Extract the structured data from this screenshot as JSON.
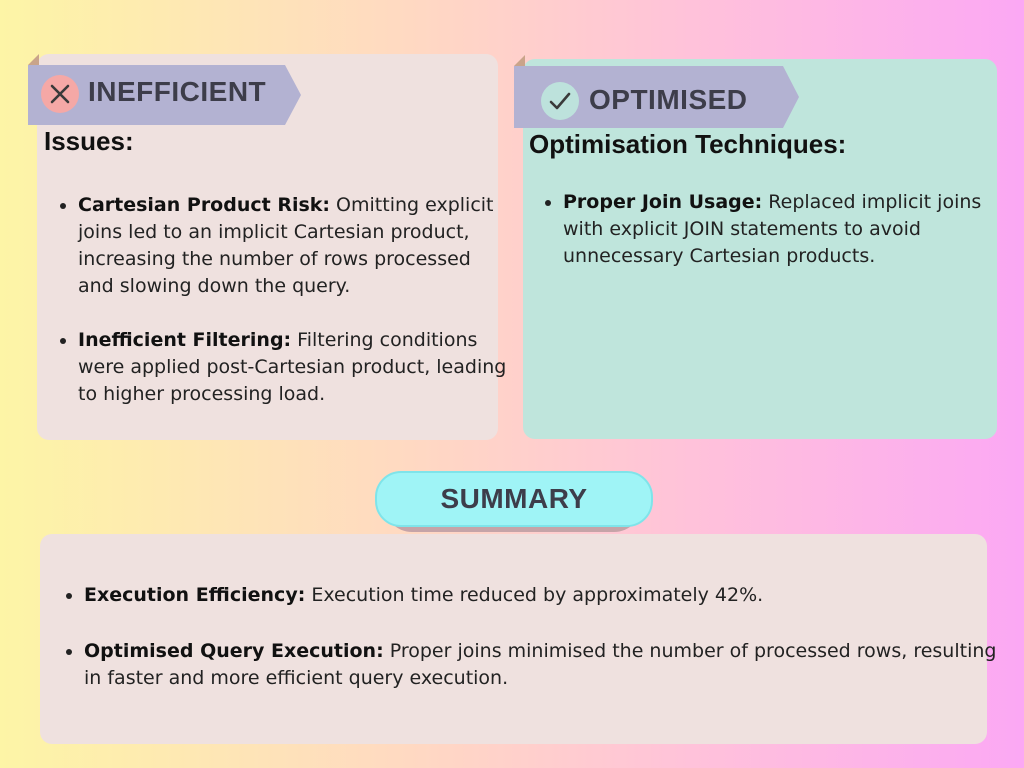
{
  "inefficient": {
    "ribbon_title": "INEFFICIENT",
    "icon": "close-icon",
    "heading": "Issues:",
    "items": [
      {
        "term": "Cartesian Product Risk:",
        "text": " Omitting explicit joins led to an implicit Cartesian product, increasing the number of rows processed and slowing down the query."
      },
      {
        "term": "Inefficient Filtering:",
        "text": " Filtering conditions were applied post-Cartesian product, leading to higher processing load."
      }
    ]
  },
  "optimised": {
    "ribbon_title": "OPTIMISED",
    "icon": "check-icon",
    "heading": "Optimisation Techniques:",
    "items": [
      {
        "term": "Proper Join Usage:",
        "text": " Replaced implicit joins with explicit JOIN statements to avoid unnecessary Cartesian products."
      }
    ]
  },
  "summary": {
    "title": "SUMMARY",
    "items": [
      {
        "term": "Execution Efficiency:",
        "text": " Execution time reduced by approximately 42%."
      },
      {
        "term": "Optimised Query Execution:",
        "text": " Proper joins minimised the number of processed rows, resulting in faster and more efficient query execution."
      }
    ]
  },
  "colors": {
    "ribbon": "#b3b2d2",
    "left_panel": "#efe1df",
    "right_panel": "#bfe5dc",
    "summary_pill": "#9ff4f6",
    "x_badge": "#f5a8a6"
  }
}
